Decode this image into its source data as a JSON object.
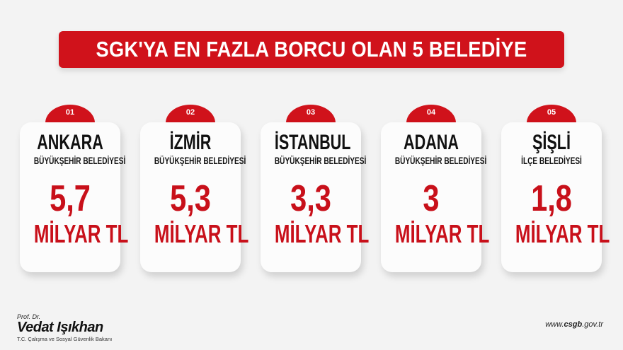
{
  "title": "SGK'YA EN FAZLA BORCU OLAN 5 BELEDİYE",
  "accent_color": "#d0121b",
  "cards": [
    {
      "rank": "01",
      "city": "ANKARA",
      "type": "BÜYÜKŞEHİR BELEDİYESİ",
      "amount": "5,7",
      "unit": "MİLYAR TL"
    },
    {
      "rank": "02",
      "city": "İZMİR",
      "type": "BÜYÜKŞEHİR BELEDİYESİ",
      "amount": "5,3",
      "unit": "MİLYAR TL"
    },
    {
      "rank": "03",
      "city": "İSTANBUL",
      "type": "BÜYÜKŞEHİR BELEDİYESİ",
      "amount": "3,3",
      "unit": "MİLYAR TL"
    },
    {
      "rank": "04",
      "city": "ADANA",
      "type": "BÜYÜKŞEHİR BELEDİYESİ",
      "amount": "3",
      "unit": "MİLYAR TL"
    },
    {
      "rank": "05",
      "city": "ŞİŞLİ",
      "type": "İLÇE BELEDİYESİ",
      "amount": "1,8",
      "unit": "MİLYAR TL"
    }
  ],
  "footer": {
    "prefix": "Prof. Dr.",
    "name": "Vedat Işıkhan",
    "role": "T.C. Çalışma ve Sosyal Güvenlik Bakanı",
    "url_pre": "www.",
    "url_bold": "csgb",
    "url_post": ".gov.tr"
  }
}
